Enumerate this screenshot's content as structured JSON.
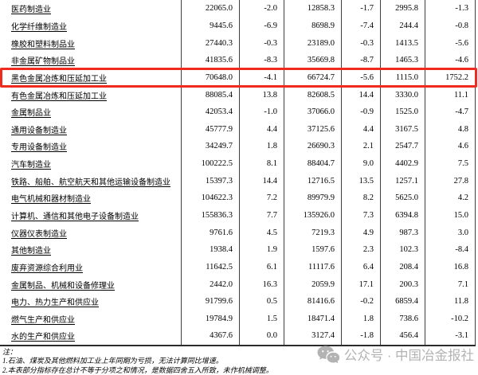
{
  "chart_data": {
    "type": "table",
    "header_visible": false,
    "highlighted_row_index": 4,
    "rows": [
      {
        "name": "医药制造业",
        "values": [
          "22065.0",
          "-2.0",
          "12858.3",
          "-1.7",
          "2995.8",
          "-1.3"
        ]
      },
      {
        "name": "化学纤维制造业",
        "values": [
          "9445.6",
          "-6.9",
          "8698.9",
          "-7.4",
          "244.4",
          "-0.8"
        ]
      },
      {
        "name": "橡胶和塑料制品业",
        "values": [
          "27440.3",
          "-0.3",
          "23189.0",
          "-0.3",
          "1413.5",
          "-5.6"
        ]
      },
      {
        "name": "非金属矿物制品业",
        "values": [
          "41835.6",
          "-8.3",
          "35669.8",
          "-8.7",
          "1465.3",
          "-4.6"
        ]
      },
      {
        "name": "黑色金属冶炼和压延加工业",
        "values": [
          "70648.0",
          "-4.1",
          "66724.7",
          "-5.6",
          "1115.0",
          "1752.2"
        ]
      },
      {
        "name": "有色金属冶炼和压延加工业",
        "values": [
          "88085.4",
          "13.8",
          "82608.5",
          "14.4",
          "3330.0",
          "11.1"
        ]
      },
      {
        "name": "金属制品业",
        "values": [
          "42053.4",
          "-1.0",
          "37066.0",
          "-0.9",
          "1525.0",
          "-4.7"
        ]
      },
      {
        "name": "通用设备制造业",
        "values": [
          "45777.9",
          "4.4",
          "37125.6",
          "4.4",
          "3167.5",
          "4.8"
        ]
      },
      {
        "name": "专用设备制造业",
        "values": [
          "34249.7",
          "1.8",
          "26690.3",
          "2.1",
          "2547.7",
          "4.6"
        ]
      },
      {
        "name": "汽车制造业",
        "values": [
          "100222.5",
          "8.1",
          "88404.7",
          "9.0",
          "4402.9",
          "7.5"
        ]
      },
      {
        "name": "铁路、船舶、航空航天和其他运输设备制造业",
        "values": [
          "15397.3",
          "14.4",
          "12716.5",
          "13.5",
          "1257.1",
          "27.8"
        ]
      },
      {
        "name": "电气机械和器材制造业",
        "values": [
          "104622.3",
          "7.2",
          "89979.9",
          "8.2",
          "5625.0",
          "4.2"
        ]
      },
      {
        "name": "计算机、通信和其他电子设备制造业",
        "values": [
          "155836.3",
          "7.7",
          "135926.0",
          "7.3",
          "6394.8",
          "15.0"
        ]
      },
      {
        "name": "仪器仪表制造业",
        "values": [
          "9761.6",
          "4.5",
          "7219.3",
          "4.9",
          "987.3",
          "3.0"
        ]
      },
      {
        "name": "其他制造业",
        "values": [
          "1938.4",
          "1.9",
          "1597.6",
          "2.3",
          "102.3",
          "-8.4"
        ]
      },
      {
        "name": "废弃资源综合利用业",
        "values": [
          "11642.5",
          "6.1",
          "11117.6",
          "6.4",
          "208.4",
          "16.8"
        ]
      },
      {
        "name": "金属制品、机械和设备修理业",
        "values": [
          "2442.0",
          "16.3",
          "2059.9",
          "17.1",
          "200.3",
          "7.1"
        ]
      },
      {
        "name": "电力、热力生产和供应业",
        "values": [
          "91799.6",
          "0.5",
          "81416.6",
          "-0.2",
          "6859.4",
          "11.8"
        ]
      },
      {
        "name": "燃气生产和供应业",
        "values": [
          "19784.9",
          "1.5",
          "18471.4",
          "1.8",
          "738.6",
          "-10.2"
        ]
      },
      {
        "name": "水的生产和供应业",
        "values": [
          "4367.6",
          "0.0",
          "3127.4",
          "-1.8",
          "456.4",
          "-3.1"
        ]
      }
    ]
  },
  "notes": {
    "label": "注：",
    "items": [
      "1.石油、煤炭及其他燃料加工业上年同期为亏损，无法计算同比增速。",
      "2.本表部分指标存在总计不等于分项之和情况，是数据四舍五入所致，未作机械调整。"
    ]
  },
  "watermark": {
    "icon": "wechat-icon",
    "text": "公众号 · 中国冶金报社"
  },
  "colors": {
    "highlight_border": "#ee2b1e",
    "grid_line": "#3f3f3f",
    "watermark_gray": "#b3b3b3"
  }
}
